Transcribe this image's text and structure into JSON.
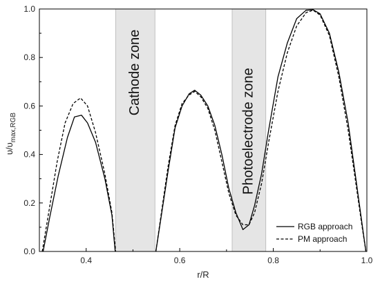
{
  "chart_data": {
    "type": "line",
    "xlabel": "r/R",
    "ylabel_main": "υ/υ",
    "ylabel_sub": "max,RGB",
    "xlim": [
      0.3,
      1.0
    ],
    "ylim": [
      0.0,
      1.0
    ],
    "x_ticks": [
      0.4,
      0.6,
      0.8,
      1.0
    ],
    "x_tick_labels": [
      "0.4",
      "0.6",
      "0.8",
      "1.0"
    ],
    "y_ticks": [
      0.0,
      0.2,
      0.4,
      0.6,
      0.8,
      1.0
    ],
    "y_tick_labels": [
      "0.0",
      "0.2",
      "0.4",
      "0.6",
      "0.8",
      "1.0"
    ],
    "grid": false,
    "legend_position": "bottom-right",
    "zones": [
      {
        "label": "Cathode zone",
        "x_start": 0.463,
        "x_end": 0.547,
        "color": "#e5e5e5"
      },
      {
        "label": "Photoelectrode zone",
        "x_start": 0.712,
        "x_end": 0.784,
        "color": "#e5e5e5"
      }
    ],
    "series": [
      {
        "name": "RGB approach",
        "style": "solid",
        "segments": [
          [
            [
              0.308,
              0.0
            ],
            [
              0.322,
              0.14
            ],
            [
              0.34,
              0.31
            ],
            [
              0.36,
              0.47
            ],
            [
              0.375,
              0.555
            ],
            [
              0.39,
              0.562
            ],
            [
              0.403,
              0.53
            ],
            [
              0.42,
              0.45
            ],
            [
              0.44,
              0.3
            ],
            [
              0.455,
              0.15
            ],
            [
              0.462,
              0.0
            ]
          ],
          [
            [
              0.549,
              0.0
            ],
            [
              0.56,
              0.14
            ],
            [
              0.575,
              0.33
            ],
            [
              0.59,
              0.51
            ],
            [
              0.605,
              0.6
            ],
            [
              0.62,
              0.65
            ],
            [
              0.632,
              0.665
            ],
            [
              0.645,
              0.645
            ],
            [
              0.66,
              0.6
            ],
            [
              0.675,
              0.52
            ],
            [
              0.69,
              0.4
            ],
            [
              0.705,
              0.26
            ],
            [
              0.72,
              0.16
            ],
            [
              0.735,
              0.09
            ],
            [
              0.748,
              0.11
            ],
            [
              0.76,
              0.19
            ],
            [
              0.775,
              0.32
            ],
            [
              0.79,
              0.5
            ],
            [
              0.81,
              0.72
            ],
            [
              0.83,
              0.86
            ],
            [
              0.85,
              0.96
            ],
            [
              0.87,
              0.995
            ],
            [
              0.885,
              0.997
            ],
            [
              0.9,
              0.98
            ],
            [
              0.92,
              0.9
            ],
            [
              0.94,
              0.74
            ],
            [
              0.96,
              0.53
            ],
            [
              0.975,
              0.32
            ],
            [
              0.99,
              0.11
            ],
            [
              0.998,
              0.0
            ]
          ]
        ]
      },
      {
        "name": "PM approach",
        "style": "dashed",
        "segments": [
          [
            [
              0.306,
              0.0
            ],
            [
              0.32,
              0.16
            ],
            [
              0.338,
              0.37
            ],
            [
              0.355,
              0.53
            ],
            [
              0.372,
              0.61
            ],
            [
              0.388,
              0.633
            ],
            [
              0.403,
              0.6
            ],
            [
              0.42,
              0.49
            ],
            [
              0.44,
              0.32
            ],
            [
              0.455,
              0.16
            ],
            [
              0.463,
              0.0
            ]
          ],
          [
            [
              0.549,
              0.0
            ],
            [
              0.56,
              0.15
            ],
            [
              0.575,
              0.35
            ],
            [
              0.59,
              0.52
            ],
            [
              0.605,
              0.61
            ],
            [
              0.62,
              0.645
            ],
            [
              0.632,
              0.66
            ],
            [
              0.645,
              0.638
            ],
            [
              0.66,
              0.59
            ],
            [
              0.675,
              0.5
            ],
            [
              0.69,
              0.37
            ],
            [
              0.705,
              0.24
            ],
            [
              0.72,
              0.15
            ],
            [
              0.735,
              0.11
            ],
            [
              0.748,
              0.11
            ],
            [
              0.76,
              0.16
            ],
            [
              0.775,
              0.28
            ],
            [
              0.79,
              0.45
            ],
            [
              0.81,
              0.66
            ],
            [
              0.83,
              0.82
            ],
            [
              0.85,
              0.93
            ],
            [
              0.87,
              0.985
            ],
            [
              0.885,
              0.995
            ],
            [
              0.9,
              0.975
            ],
            [
              0.92,
              0.89
            ],
            [
              0.94,
              0.72
            ],
            [
              0.96,
              0.5
            ],
            [
              0.975,
              0.3
            ],
            [
              0.99,
              0.1
            ],
            [
              0.998,
              0.0
            ]
          ]
        ]
      }
    ]
  }
}
